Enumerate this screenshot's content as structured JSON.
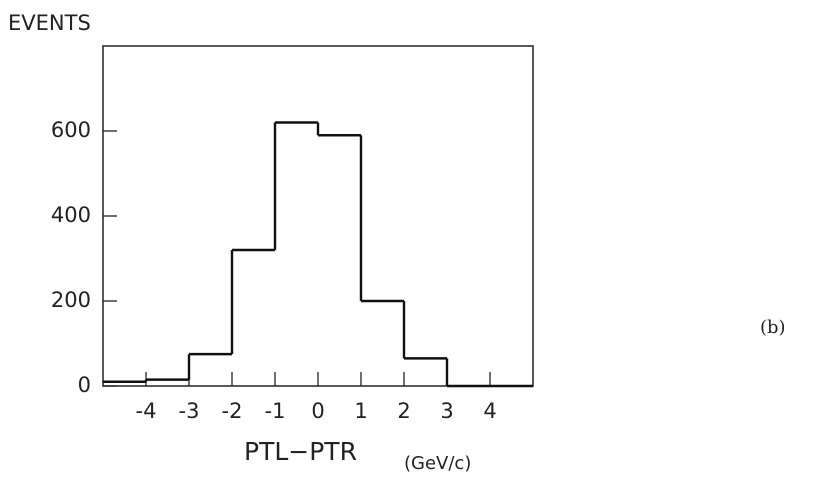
{
  "chart_data": {
    "type": "histogram",
    "title": "EVENTS",
    "xlabel": "PTL−PTR",
    "xlabel_unit": "(GeV/c)",
    "annotation": "(b)",
    "bins": [
      -5,
      -4,
      -3,
      -2,
      -1,
      0,
      1,
      2,
      3,
      4,
      5
    ],
    "values": [
      10,
      15,
      75,
      320,
      620,
      590,
      200,
      65,
      0,
      0
    ],
    "color": "#111111",
    "xlim": [
      -5,
      5
    ],
    "xticks": [
      -4,
      -3,
      -2,
      -1,
      0,
      1,
      2,
      3,
      4
    ],
    "ylim": [
      0,
      800
    ],
    "yticks": [
      0,
      200,
      400,
      600
    ]
  }
}
